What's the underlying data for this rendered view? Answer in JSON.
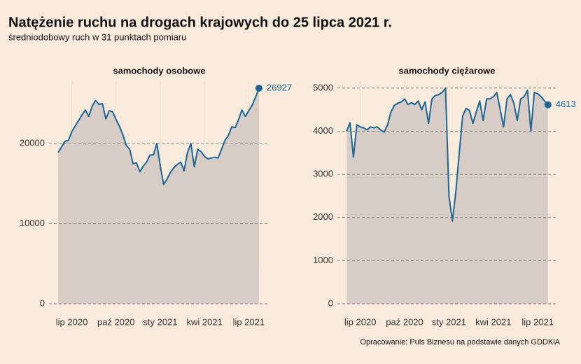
{
  "title": "Natężenie ruchu na drogach krajowych do 25 lipca 2021 r.",
  "subtitle": "średniodobowy ruch w 31 punktach pomiaru",
  "source": "Opracowanie: Puls Biznesu na podstawie danych GDDKiA",
  "chart_data": [
    {
      "type": "area",
      "title": "samochody osobowe",
      "color": "#1b6597",
      "fill": "#d8cdc6",
      "grid": true,
      "values": [
        18900,
        19600,
        20300,
        20400,
        21500,
        22200,
        22900,
        23600,
        24200,
        23400,
        24700,
        25400,
        24900,
        25000,
        23100,
        24100,
        24000,
        23000,
        22200,
        21100,
        19800,
        19300,
        17500,
        17600,
        16500,
        17200,
        17700,
        18600,
        18600,
        20000,
        17200,
        14900,
        15600,
        16400,
        17000,
        17400,
        17700,
        16600,
        18900,
        20000,
        17100,
        19300,
        19000,
        18400,
        18100,
        18200,
        18300,
        18200,
        19300,
        20400,
        21000,
        22100,
        22000,
        23000,
        24200,
        23400,
        24100,
        24800,
        25800,
        26927
      ],
      "xlim": [
        -2.7,
        62.1
      ],
      "xticks": [
        {
          "value": 4,
          "label": "lip 2020"
        },
        {
          "value": 17,
          "label": "paź 2020"
        },
        {
          "value": 30,
          "label": "sty 2021"
        },
        {
          "value": 43,
          "label": "kwi 2021"
        },
        {
          "value": 56,
          "label": "lip 2021"
        }
      ],
      "ylim": [
        0,
        27800
      ],
      "yticks": [
        0,
        10000,
        20000
      ]
    },
    {
      "type": "area",
      "title": "samochody ciężarowe",
      "color": "#1b6597",
      "fill": "#d8cdc6",
      "grid": true,
      "values": [
        4000,
        4200,
        3400,
        4150,
        4100,
        4080,
        4030,
        4100,
        4080,
        4100,
        4030,
        3980,
        4150,
        4450,
        4600,
        4650,
        4680,
        4750,
        4620,
        4660,
        4620,
        4700,
        4500,
        4680,
        4180,
        4750,
        4830,
        4850,
        4900,
        5000,
        2500,
        1920,
        2600,
        3500,
        4350,
        4530,
        4480,
        4180,
        4450,
        4700,
        4250,
        4750,
        4750,
        4800,
        4900,
        4500,
        4100,
        4750,
        4850,
        4650,
        4250,
        4750,
        4800,
        4950,
        4000,
        4900,
        4870,
        4800,
        4700,
        4613
      ],
      "xlim": [
        -2.7,
        61.5
      ],
      "xticks": [
        {
          "value": 4,
          "label": "lip 2020"
        },
        {
          "value": 17,
          "label": "paź 2020"
        },
        {
          "value": 30,
          "label": "sty 2021"
        },
        {
          "value": 43,
          "label": "kwi 2021"
        },
        {
          "value": 56,
          "label": "lip 2021"
        }
      ],
      "ylim": [
        0,
        5160
      ],
      "yticks": [
        0,
        1000,
        2000,
        3000,
        4000,
        5000
      ]
    }
  ]
}
